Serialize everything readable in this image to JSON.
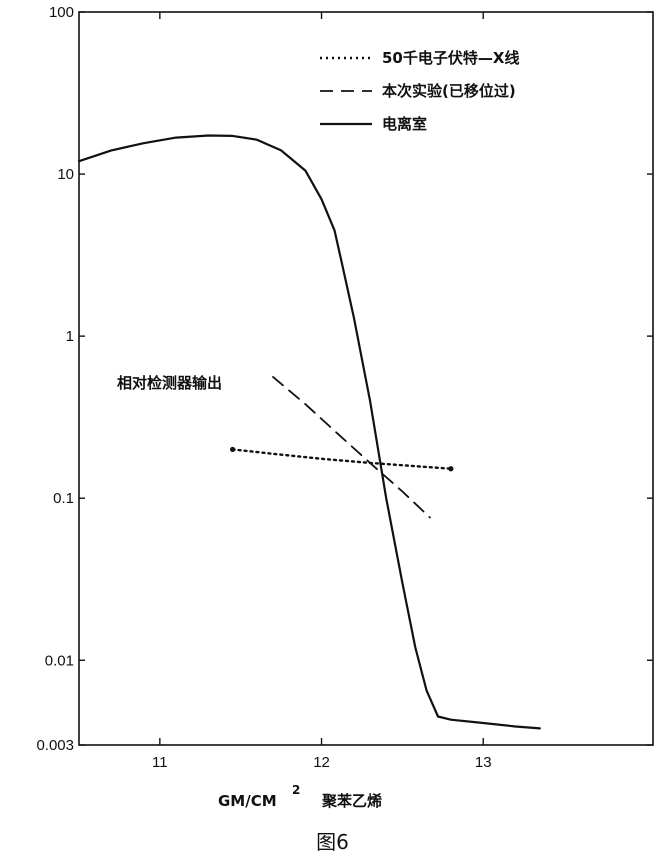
{
  "chart_data": {
    "type": "line",
    "yscale": "log",
    "xlim": [
      10.5,
      14.05
    ],
    "ylim": [
      0.003,
      100
    ],
    "x_ticks": [
      11,
      12,
      13
    ],
    "y_ticks": [
      {
        "value": 100,
        "label": "100"
      },
      {
        "value": 10,
        "label": "10"
      },
      {
        "value": 1,
        "label": "1"
      },
      {
        "value": 0.1,
        "label": "0.1"
      },
      {
        "value": 0.01,
        "label": "0.01"
      },
      {
        "value": 0.003,
        "label": "0.003"
      }
    ],
    "xlabel": "GM/CM",
    "xlabel_sup": "2",
    "xlabel_material": "聚苯乙烯",
    "ylabel_annotation": "相对检测器输出",
    "legend_position": "top-right",
    "grid": false,
    "series": [
      {
        "name": "50千电子伏特—X线",
        "style": "dotted",
        "points": [
          [
            11.45,
            0.2
          ],
          [
            11.7,
            0.188
          ],
          [
            12.0,
            0.175
          ],
          [
            12.3,
            0.165
          ],
          [
            12.6,
            0.157
          ],
          [
            12.8,
            0.152
          ]
        ]
      },
      {
        "name": "本次实验(已移位过)",
        "style": "dashed",
        "points": [
          [
            11.7,
            0.56
          ],
          [
            11.9,
            0.38
          ],
          [
            12.1,
            0.25
          ],
          [
            12.3,
            0.165
          ],
          [
            12.5,
            0.11
          ],
          [
            12.67,
            0.076
          ]
        ]
      },
      {
        "name": "电离室",
        "style": "solid",
        "points": [
          [
            10.5,
            12
          ],
          [
            10.7,
            14
          ],
          [
            10.9,
            15.5
          ],
          [
            11.1,
            16.8
          ],
          [
            11.3,
            17.3
          ],
          [
            11.45,
            17.2
          ],
          [
            11.6,
            16.3
          ],
          [
            11.75,
            14
          ],
          [
            11.9,
            10.5
          ],
          [
            12.0,
            7
          ],
          [
            12.08,
            4.5
          ],
          [
            12.12,
            3.0
          ],
          [
            12.2,
            1.3
          ],
          [
            12.3,
            0.4
          ],
          [
            12.4,
            0.1
          ],
          [
            12.5,
            0.03
          ],
          [
            12.58,
            0.012
          ],
          [
            12.65,
            0.0065
          ],
          [
            12.72,
            0.0045
          ],
          [
            12.8,
            0.0043
          ],
          [
            13.0,
            0.0041
          ],
          [
            13.2,
            0.0039
          ],
          [
            13.35,
            0.0038
          ]
        ]
      }
    ]
  },
  "figure": {
    "caption": "图6"
  }
}
